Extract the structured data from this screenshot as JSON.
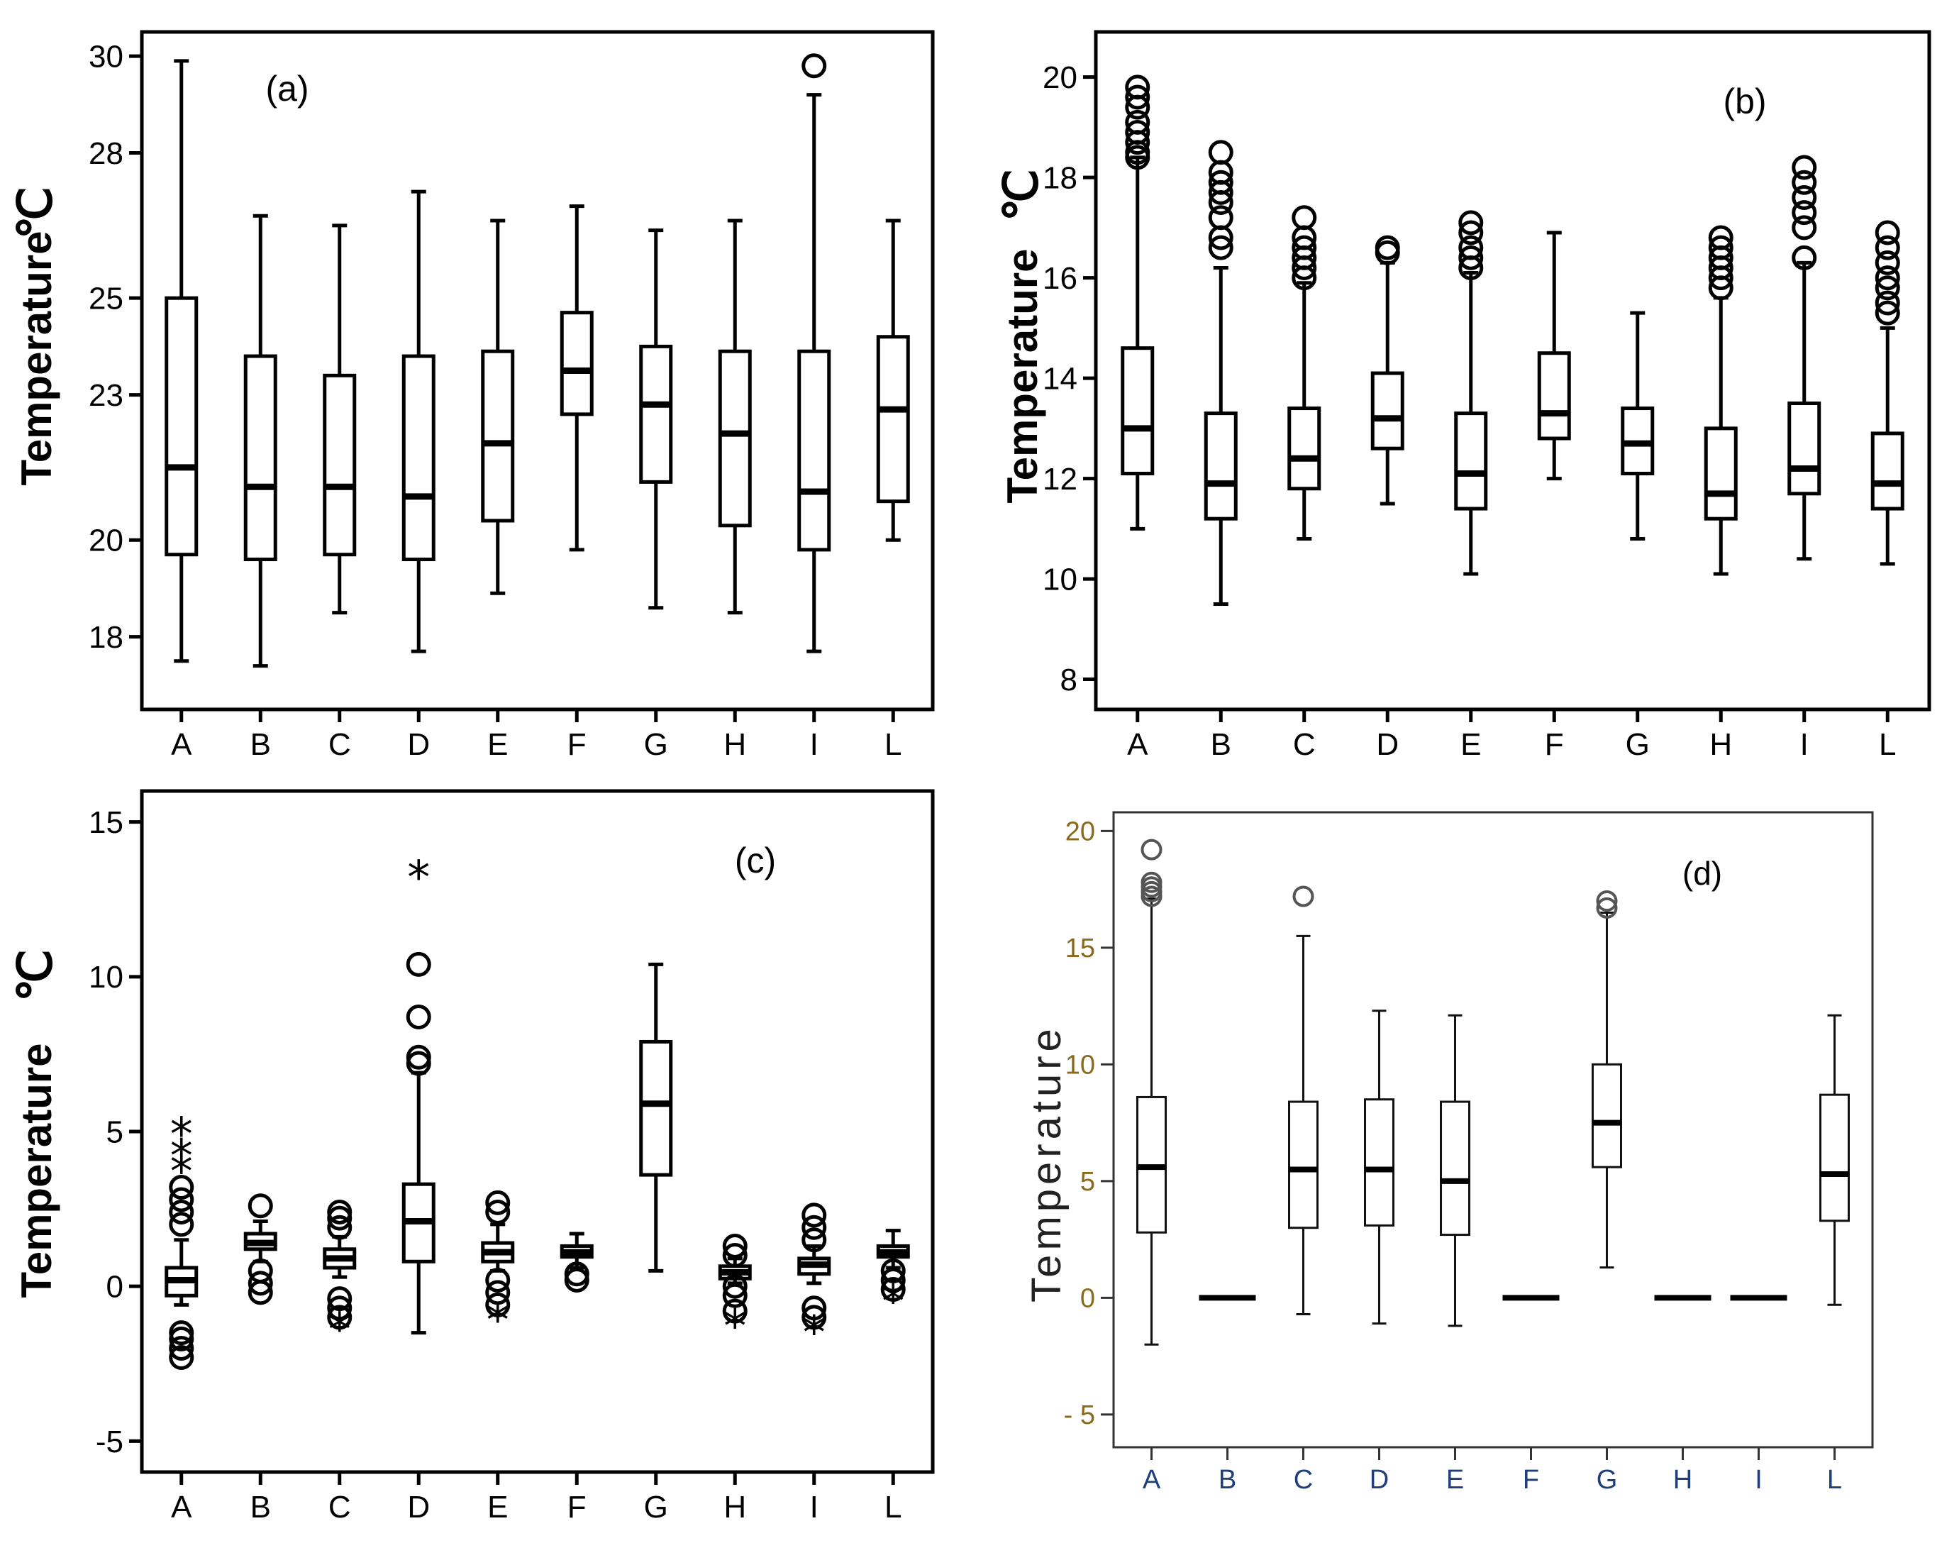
{
  "figure": {
    "panel_count": 4
  },
  "chart_data": [
    {
      "type": "box",
      "panel_label": "(a)",
      "ylabel": "Temperature",
      "ylabel_unit": "℃",
      "ylim": [
        16.5,
        30.5
      ],
      "yticks": [
        18,
        20,
        23,
        25,
        28,
        30
      ],
      "categories": [
        "A",
        "B",
        "C",
        "D",
        "E",
        "F",
        "G",
        "H",
        "I",
        "L"
      ],
      "boxes": [
        {
          "cat": "A",
          "whislo": 17.5,
          "q1": 19.7,
          "med": 21.5,
          "q3": 25.0,
          "whishi": 29.9,
          "fliers": [],
          "extremes": []
        },
        {
          "cat": "B",
          "whislo": 17.4,
          "q1": 19.6,
          "med": 21.1,
          "q3": 23.8,
          "whishi": 26.7,
          "fliers": [],
          "extremes": []
        },
        {
          "cat": "C",
          "whislo": 18.5,
          "q1": 19.7,
          "med": 21.1,
          "q3": 23.4,
          "whishi": 26.5,
          "fliers": [],
          "extremes": []
        },
        {
          "cat": "D",
          "whislo": 17.7,
          "q1": 19.6,
          "med": 20.9,
          "q3": 23.8,
          "whishi": 27.2,
          "fliers": [],
          "extremes": []
        },
        {
          "cat": "E",
          "whislo": 18.9,
          "q1": 20.4,
          "med": 22.0,
          "q3": 23.9,
          "whishi": 26.6,
          "fliers": [],
          "extremes": []
        },
        {
          "cat": "F",
          "whislo": 19.8,
          "q1": 22.6,
          "med": 23.5,
          "q3": 24.7,
          "whishi": 26.9,
          "fliers": [],
          "extremes": []
        },
        {
          "cat": "G",
          "whislo": 18.6,
          "q1": 21.2,
          "med": 22.8,
          "q3": 24.0,
          "whishi": 26.4,
          "fliers": [],
          "extremes": []
        },
        {
          "cat": "H",
          "whislo": 18.5,
          "q1": 20.3,
          "med": 22.2,
          "q3": 23.9,
          "whishi": 26.6,
          "fliers": [],
          "extremes": []
        },
        {
          "cat": "I",
          "whislo": 17.7,
          "q1": 19.8,
          "med": 21.0,
          "q3": 23.9,
          "whishi": 29.2,
          "fliers": [
            29.8
          ],
          "extremes": []
        },
        {
          "cat": "L",
          "whislo": 20.0,
          "q1": 20.8,
          "med": 22.7,
          "q3": 24.2,
          "whishi": 26.6,
          "fliers": [],
          "extremes": []
        }
      ]
    },
    {
      "type": "box",
      "panel_label": "(b)",
      "ylabel": "Temperature",
      "ylabel_unit": "℃",
      "ylim": [
        7.4,
        20.9
      ],
      "yticks": [
        8,
        10,
        12,
        14,
        16,
        18,
        20
      ],
      "categories": [
        "A",
        "B",
        "C",
        "D",
        "E",
        "F",
        "G",
        "H",
        "I",
        "L"
      ],
      "boxes": [
        {
          "cat": "A",
          "whislo": 11.0,
          "q1": 12.1,
          "med": 13.0,
          "q3": 14.6,
          "whishi": 18.4,
          "fliers": [
            18.4,
            18.5,
            18.7,
            18.9,
            19.1,
            19.4,
            19.6,
            19.8
          ],
          "extremes": []
        },
        {
          "cat": "B",
          "whislo": 9.5,
          "q1": 11.2,
          "med": 11.9,
          "q3": 13.3,
          "whishi": 16.2,
          "fliers": [
            16.6,
            16.8,
            17.2,
            17.5,
            17.7,
            17.9,
            18.1,
            18.5
          ],
          "extremes": []
        },
        {
          "cat": "C",
          "whislo": 10.8,
          "q1": 11.8,
          "med": 12.4,
          "q3": 13.4,
          "whishi": 15.9,
          "fliers": [
            16.0,
            16.2,
            16.4,
            16.6,
            16.8,
            17.2
          ],
          "extremes": []
        },
        {
          "cat": "D",
          "whislo": 11.5,
          "q1": 12.6,
          "med": 13.2,
          "q3": 14.1,
          "whishi": 16.3,
          "fliers": [
            16.5,
            16.6
          ],
          "extremes": []
        },
        {
          "cat": "E",
          "whislo": 10.1,
          "q1": 11.4,
          "med": 12.1,
          "q3": 13.3,
          "whishi": 16.1,
          "fliers": [
            16.2,
            16.4,
            16.6,
            16.9,
            17.1
          ],
          "extremes": []
        },
        {
          "cat": "F",
          "whislo": 12.0,
          "q1": 12.8,
          "med": 13.3,
          "q3": 14.5,
          "whishi": 16.9,
          "fliers": [],
          "extremes": []
        },
        {
          "cat": "G",
          "whislo": 10.8,
          "q1": 12.1,
          "med": 12.7,
          "q3": 13.4,
          "whishi": 15.3,
          "fliers": [],
          "extremes": []
        },
        {
          "cat": "H",
          "whislo": 10.1,
          "q1": 11.2,
          "med": 11.7,
          "q3": 13.0,
          "whishi": 15.6,
          "fliers": [
            15.8,
            16.0,
            16.2,
            16.4,
            16.6,
            16.8
          ],
          "extremes": []
        },
        {
          "cat": "I",
          "whislo": 10.4,
          "q1": 11.7,
          "med": 12.2,
          "q3": 13.5,
          "whishi": 16.3,
          "fliers": [
            16.4,
            17.0,
            17.3,
            17.6,
            17.9,
            18.2
          ],
          "extremes": []
        },
        {
          "cat": "L",
          "whislo": 10.3,
          "q1": 11.4,
          "med": 11.9,
          "q3": 12.9,
          "whishi": 15.0,
          "fliers": [
            15.3,
            15.5,
            15.8,
            16.0,
            16.3,
            16.6,
            16.9
          ],
          "extremes": []
        }
      ]
    },
    {
      "type": "box",
      "panel_label": "(c)",
      "ylabel": "Temperature",
      "ylabel_unit": "℃",
      "ylim": [
        -6.0,
        16.0
      ],
      "yticks": [
        -5,
        0,
        5,
        10,
        15
      ],
      "categories": [
        "A",
        "B",
        "C",
        "D",
        "E",
        "F",
        "G",
        "H",
        "I",
        "L"
      ],
      "boxes": [
        {
          "cat": "A",
          "whislo": -0.6,
          "q1": -0.3,
          "med": 0.2,
          "q3": 0.6,
          "whishi": 1.5,
          "fliers": [
            -2.3,
            -2.0,
            -1.7,
            -1.5,
            2.0,
            2.4,
            2.8,
            3.2
          ],
          "extremes": [
            3.8,
            4.3,
            5.0
          ]
        },
        {
          "cat": "B",
          "whislo": 0.8,
          "q1": 1.2,
          "med": 1.4,
          "q3": 1.7,
          "whishi": 2.1,
          "fliers": [
            -0.2,
            0.1,
            0.5,
            2.6
          ],
          "extremes": []
        },
        {
          "cat": "C",
          "whislo": 0.3,
          "q1": 0.6,
          "med": 0.9,
          "q3": 1.2,
          "whishi": 1.6,
          "fliers": [
            -1.0,
            -0.7,
            -0.4,
            1.9,
            2.2,
            2.4
          ],
          "extremes": [
            -1.3
          ]
        },
        {
          "cat": "D",
          "whislo": -1.5,
          "q1": 0.8,
          "med": 2.1,
          "q3": 3.3,
          "whishi": 6.9,
          "fliers": [
            7.2,
            7.4,
            8.7,
            10.4
          ],
          "extremes": [
            13.3
          ]
        },
        {
          "cat": "E",
          "whislo": 0.5,
          "q1": 0.8,
          "med": 1.1,
          "q3": 1.4,
          "whishi": 2.0,
          "fliers": [
            -0.6,
            -0.2,
            0.2,
            2.4,
            2.7
          ],
          "extremes": [
            -1.0
          ]
        },
        {
          "cat": "F",
          "whislo": 0.6,
          "q1": 0.95,
          "med": 1.1,
          "q3": 1.3,
          "whishi": 1.7,
          "fliers": [
            0.2,
            0.4
          ],
          "extremes": []
        },
        {
          "cat": "G",
          "whislo": 0.5,
          "q1": 3.6,
          "med": 5.9,
          "q3": 7.9,
          "whishi": 10.4,
          "fliers": [],
          "extremes": []
        },
        {
          "cat": "H",
          "whislo": 0.1,
          "q1": 0.25,
          "med": 0.45,
          "q3": 0.65,
          "whishi": 0.9,
          "fliers": [
            -0.8,
            -0.3,
            0.0,
            1.0,
            1.3
          ],
          "extremes": [
            -1.2
          ]
        },
        {
          "cat": "I",
          "whislo": 0.1,
          "q1": 0.4,
          "med": 0.7,
          "q3": 0.9,
          "whishi": 1.3,
          "fliers": [
            -1.0,
            -0.7,
            1.5,
            1.9,
            2.3
          ],
          "extremes": [
            -1.4
          ]
        },
        {
          "cat": "L",
          "whislo": 0.6,
          "q1": 0.95,
          "med": 1.1,
          "q3": 1.3,
          "whishi": 1.8,
          "fliers": [
            -0.1,
            0.2,
            0.5
          ],
          "extremes": [
            -0.4
          ]
        }
      ]
    },
    {
      "type": "box",
      "panel_label": "(d)",
      "ylabel": "Temperature",
      "ylabel_unit": "",
      "ylim": [
        -6.4,
        20.8
      ],
      "yticks": [
        -5,
        0,
        5,
        10,
        15,
        20
      ],
      "ytick_labels": [
        "- 5",
        "0",
        "5",
        "10",
        "15",
        "20"
      ],
      "categories": [
        "A",
        "B",
        "C",
        "D",
        "E",
        "F",
        "G",
        "H",
        "I",
        "L"
      ],
      "boxes": [
        {
          "cat": "A",
          "whislo": -2.0,
          "q1": 2.8,
          "med": 5.6,
          "q3": 8.6,
          "whishi": 17.1,
          "fliers": [
            17.2,
            17.4,
            17.6,
            17.8,
            19.2
          ],
          "extremes": []
        },
        {
          "cat": "B",
          "whislo": 0.0,
          "q1": 0.0,
          "med": 0.0,
          "q3": 0.0,
          "whishi": 0.0,
          "fliers": [],
          "extremes": []
        },
        {
          "cat": "C",
          "whislo": -0.7,
          "q1": 3.0,
          "med": 5.5,
          "q3": 8.4,
          "whishi": 15.5,
          "fliers": [
            17.2
          ],
          "extremes": []
        },
        {
          "cat": "D",
          "whislo": -1.1,
          "q1": 3.1,
          "med": 5.5,
          "q3": 8.5,
          "whishi": 12.3,
          "fliers": [],
          "extremes": []
        },
        {
          "cat": "E",
          "whislo": -1.2,
          "q1": 2.7,
          "med": 5.0,
          "q3": 8.4,
          "whishi": 12.1,
          "fliers": [],
          "extremes": []
        },
        {
          "cat": "F",
          "whislo": 0.0,
          "q1": 0.0,
          "med": 0.0,
          "q3": 0.0,
          "whishi": 0.0,
          "fliers": [],
          "extremes": []
        },
        {
          "cat": "G",
          "whislo": 1.3,
          "q1": 5.6,
          "med": 7.5,
          "q3": 10.0,
          "whishi": 16.5,
          "fliers": [
            16.7,
            17.0
          ],
          "extremes": []
        },
        {
          "cat": "H",
          "whislo": 0.0,
          "q1": 0.0,
          "med": 0.0,
          "q3": 0.0,
          "whishi": 0.0,
          "fliers": [],
          "extremes": []
        },
        {
          "cat": "I",
          "whislo": 0.0,
          "q1": 0.0,
          "med": 0.0,
          "q3": 0.0,
          "whishi": 0.0,
          "fliers": [],
          "extremes": []
        },
        {
          "cat": "L",
          "whislo": -0.3,
          "q1": 3.3,
          "med": 5.3,
          "q3": 8.7,
          "whishi": 12.1,
          "fliers": [],
          "extremes": []
        }
      ]
    }
  ]
}
